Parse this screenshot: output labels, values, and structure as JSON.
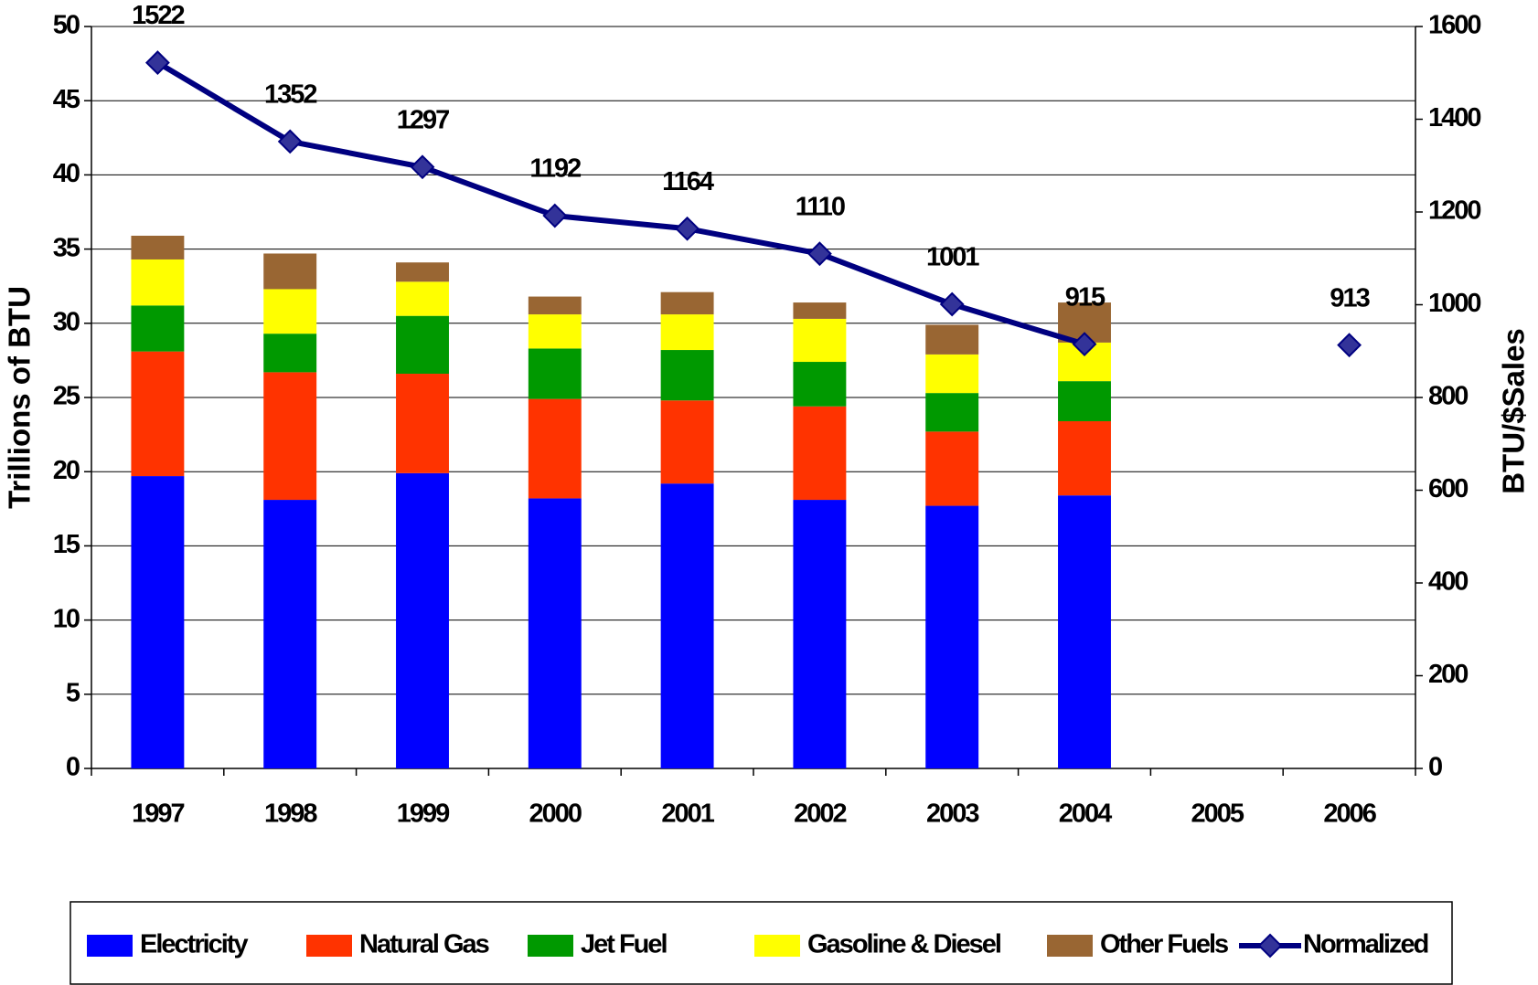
{
  "chart_data": {
    "type": "bar",
    "stacked": true,
    "categories": [
      "1997",
      "1998",
      "1999",
      "2000",
      "2001",
      "2002",
      "2003",
      "2004",
      "2005",
      "2006"
    ],
    "series": [
      {
        "name": "Electricity",
        "color": "#0000ff",
        "values": [
          19.7,
          18.1,
          19.9,
          18.2,
          19.2,
          18.1,
          17.7,
          18.4,
          null,
          null
        ]
      },
      {
        "name": "Natural Gas",
        "color": "#ff3300",
        "values": [
          8.4,
          8.6,
          6.7,
          6.7,
          5.6,
          6.3,
          5.0,
          5.0,
          null,
          null
        ]
      },
      {
        "name": "Jet Fuel",
        "color": "#009900",
        "values": [
          3.1,
          2.6,
          3.9,
          3.4,
          3.4,
          3.0,
          2.6,
          2.7,
          null,
          null
        ]
      },
      {
        "name": "Gasoline & Diesel",
        "color": "#ffff00",
        "values": [
          3.1,
          3.0,
          2.3,
          2.3,
          2.4,
          2.9,
          2.6,
          2.6,
          null,
          null
        ]
      },
      {
        "name": "Other Fuels",
        "color": "#996633",
        "values": [
          1.6,
          2.4,
          1.3,
          1.2,
          1.5,
          1.1,
          2.0,
          2.7,
          null,
          null
        ]
      },
      {
        "name": "Normalized",
        "type": "line",
        "axis": "y2",
        "color": "#000080",
        "marker": "diamond",
        "values": [
          1522,
          1352,
          1297,
          1192,
          1164,
          1110,
          1001,
          915,
          null,
          913
        ]
      }
    ],
    "ylabel": "Trillions of BTU",
    "y2label": "BTU/$Sales",
    "ylim": [
      0,
      50
    ],
    "yticks": [
      0,
      5,
      10,
      15,
      20,
      25,
      30,
      35,
      40,
      45,
      50
    ],
    "y2lim": [
      0,
      1600
    ],
    "y2ticks": [
      0,
      200,
      400,
      600,
      800,
      1000,
      1200,
      1400,
      1600
    ],
    "grid": true,
    "legend": "bottom"
  }
}
